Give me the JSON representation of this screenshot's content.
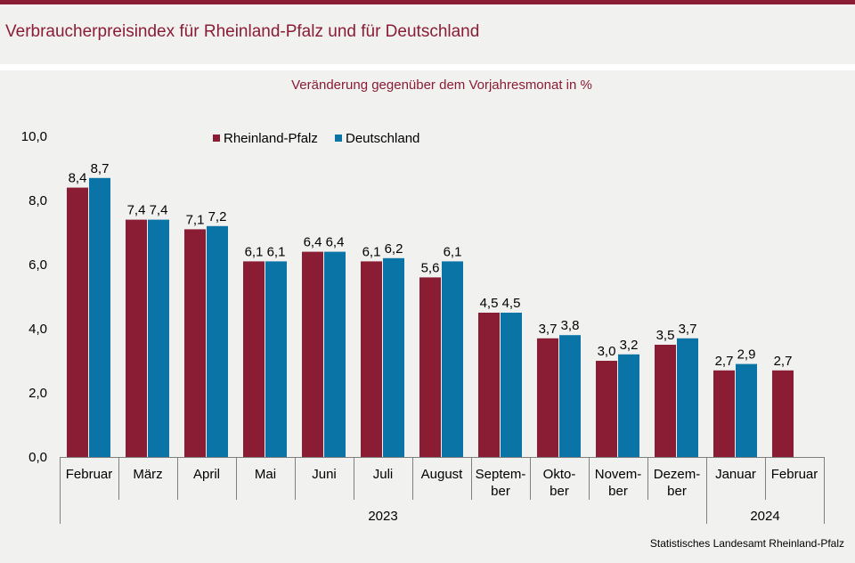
{
  "title": "Verbraucherpreisindex für Rheinland-Pfalz und für Deutschland",
  "source": "Statistisches Landesamt Rheinland-Pfalz",
  "colors": {
    "accent": "#8a1c34",
    "rlp": "#8a1c34",
    "de": "#0a74a6"
  },
  "chart_data": {
    "type": "bar",
    "subtitle": "Veränderung gegenüber dem Vorjahresmonat in %",
    "categories": [
      [
        "Februar"
      ],
      [
        "März"
      ],
      [
        "April"
      ],
      [
        "Mai"
      ],
      [
        "Juni"
      ],
      [
        "Juli"
      ],
      [
        "August"
      ],
      [
        "Septem-",
        "ber"
      ],
      [
        "Okto-",
        "ber"
      ],
      [
        "Novem-",
        "ber"
      ],
      [
        "Dezem-",
        "ber"
      ],
      [
        "Januar"
      ],
      [
        "Februar"
      ]
    ],
    "groups": [
      {
        "label": "2023",
        "count": 11
      },
      {
        "label": "2024",
        "count": 2
      }
    ],
    "series": [
      {
        "name": "Rheinland-Pfalz",
        "color": "#8a1c34",
        "values": [
          8.4,
          7.4,
          7.1,
          6.1,
          6.4,
          6.1,
          5.6,
          4.5,
          3.7,
          3.0,
          3.5,
          2.7,
          2.7
        ]
      },
      {
        "name": "Deutschland",
        "color": "#0a74a6",
        "values": [
          8.7,
          7.4,
          7.2,
          6.1,
          6.4,
          6.2,
          6.1,
          4.5,
          3.8,
          3.2,
          3.7,
          2.9,
          null
        ]
      }
    ],
    "ylim": [
      0,
      10
    ],
    "yticks": [
      0,
      2,
      4,
      6,
      8,
      10
    ],
    "decimal_separator": ",",
    "legend_position": "top"
  }
}
